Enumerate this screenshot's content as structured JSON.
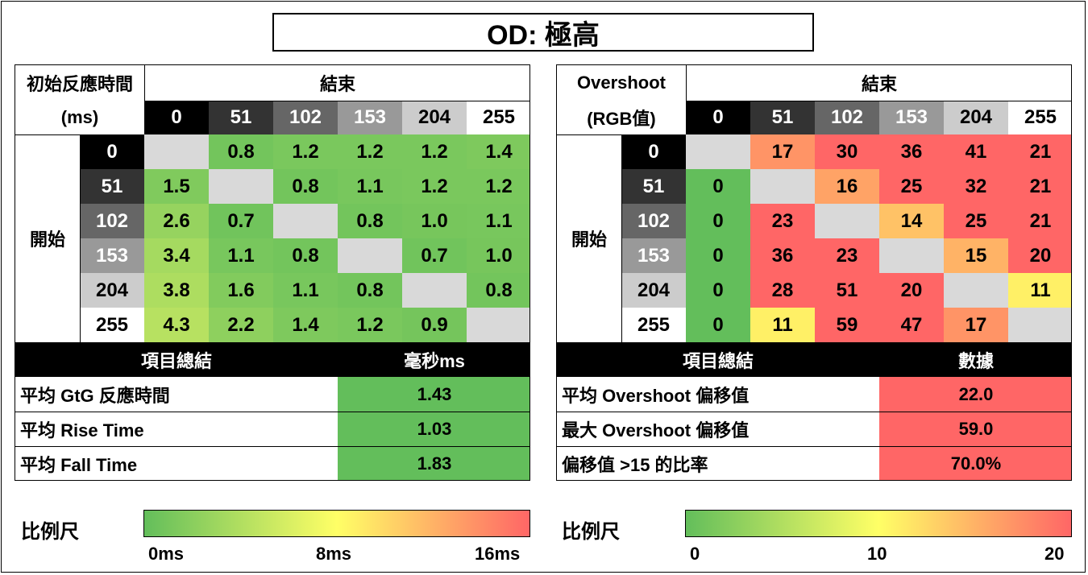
{
  "title": "OD: 極高",
  "levels": [
    "0",
    "51",
    "102",
    "153",
    "204",
    "255"
  ],
  "level_colors": [
    {
      "bg": "#000000",
      "fg": "#ffffff"
    },
    {
      "bg": "#333333",
      "fg": "#ffffff"
    },
    {
      "bg": "#666666",
      "fg": "#ffffff"
    },
    {
      "bg": "#999999",
      "fg": "#ffffff"
    },
    {
      "bg": "#cccccc",
      "fg": "#000000"
    },
    {
      "bg": "#ffffff",
      "fg": "#000000"
    }
  ],
  "diag_color": "#d9d9d9",
  "response": {
    "header_line1": "初始反應時間",
    "header_line2": "(ms)",
    "end_label": "結束",
    "start_label": "開始",
    "summary_header_left": "項目總結",
    "summary_header_right": "毫秒ms",
    "summary": [
      {
        "label": "平均  GtG  反應時間",
        "value": "1.43"
      },
      {
        "label": "平均  Rise  Time",
        "value": "1.03"
      },
      {
        "label": "平均  Fall  Time",
        "value": "1.83"
      }
    ],
    "summary_color": "#63be5b",
    "scale_label": "比例尺",
    "scale_ticks": [
      "0ms",
      "8ms",
      "16ms"
    ]
  },
  "overshoot": {
    "header_line1": "Overshoot",
    "header_line2": "(RGB值)",
    "end_label": "結束",
    "start_label": "開始",
    "summary_header_left": "項目總結",
    "summary_header_right": "數據",
    "summary": [
      {
        "label": "平均  Overshoot  偏移值",
        "value": "22.0"
      },
      {
        "label": "最大  Overshoot  偏移值",
        "value": "59.0"
      },
      {
        "label": "偏移值  >15  的比率",
        "value": "70.0%"
      }
    ],
    "summary_color": "#ff6666",
    "scale_label": "比例尺",
    "scale_ticks": [
      "0",
      "10",
      "20"
    ]
  },
  "chart_data": [
    {
      "type": "heatmap",
      "title": "初始反應時間 (ms)",
      "xlabel": "結束",
      "ylabel": "開始",
      "categories": [
        "0",
        "51",
        "102",
        "153",
        "204",
        "255"
      ],
      "color_scale": {
        "min": 0,
        "mid": 8,
        "max": 16,
        "colors": [
          "#63be5b",
          "#ffff66",
          "#ff6666"
        ]
      },
      "values": [
        [
          null,
          "0.8",
          "1.2",
          "1.2",
          "1.2",
          "1.4"
        ],
        [
          "1.5",
          null,
          "0.8",
          "1.1",
          "1.2",
          "1.2"
        ],
        [
          "2.6",
          "0.7",
          null,
          "0.8",
          "1.0",
          "1.1"
        ],
        [
          "3.4",
          "1.1",
          "0.8",
          null,
          "0.7",
          "1.0"
        ],
        [
          "3.8",
          "1.6",
          "1.1",
          "0.8",
          null,
          "0.8"
        ],
        [
          "4.3",
          "2.2",
          "1.4",
          "1.2",
          "0.9",
          null
        ]
      ]
    },
    {
      "type": "heatmap",
      "title": "Overshoot (RGB值)",
      "xlabel": "結束",
      "ylabel": "開始",
      "categories": [
        "0",
        "51",
        "102",
        "153",
        "204",
        "255"
      ],
      "color_scale": {
        "min": 0,
        "mid": 10,
        "max": 20,
        "colors": [
          "#63be5b",
          "#ffff66",
          "#ff6666"
        ]
      },
      "values": [
        [
          null,
          "17",
          "30",
          "36",
          "41",
          "21"
        ],
        [
          "0",
          null,
          "16",
          "25",
          "32",
          "21"
        ],
        [
          "0",
          "23",
          null,
          "14",
          "25",
          "21"
        ],
        [
          "0",
          "36",
          "23",
          null,
          "15",
          "20"
        ],
        [
          "0",
          "28",
          "51",
          "20",
          null,
          "11"
        ],
        [
          "0",
          "11",
          "59",
          "47",
          "17",
          null
        ]
      ]
    }
  ]
}
